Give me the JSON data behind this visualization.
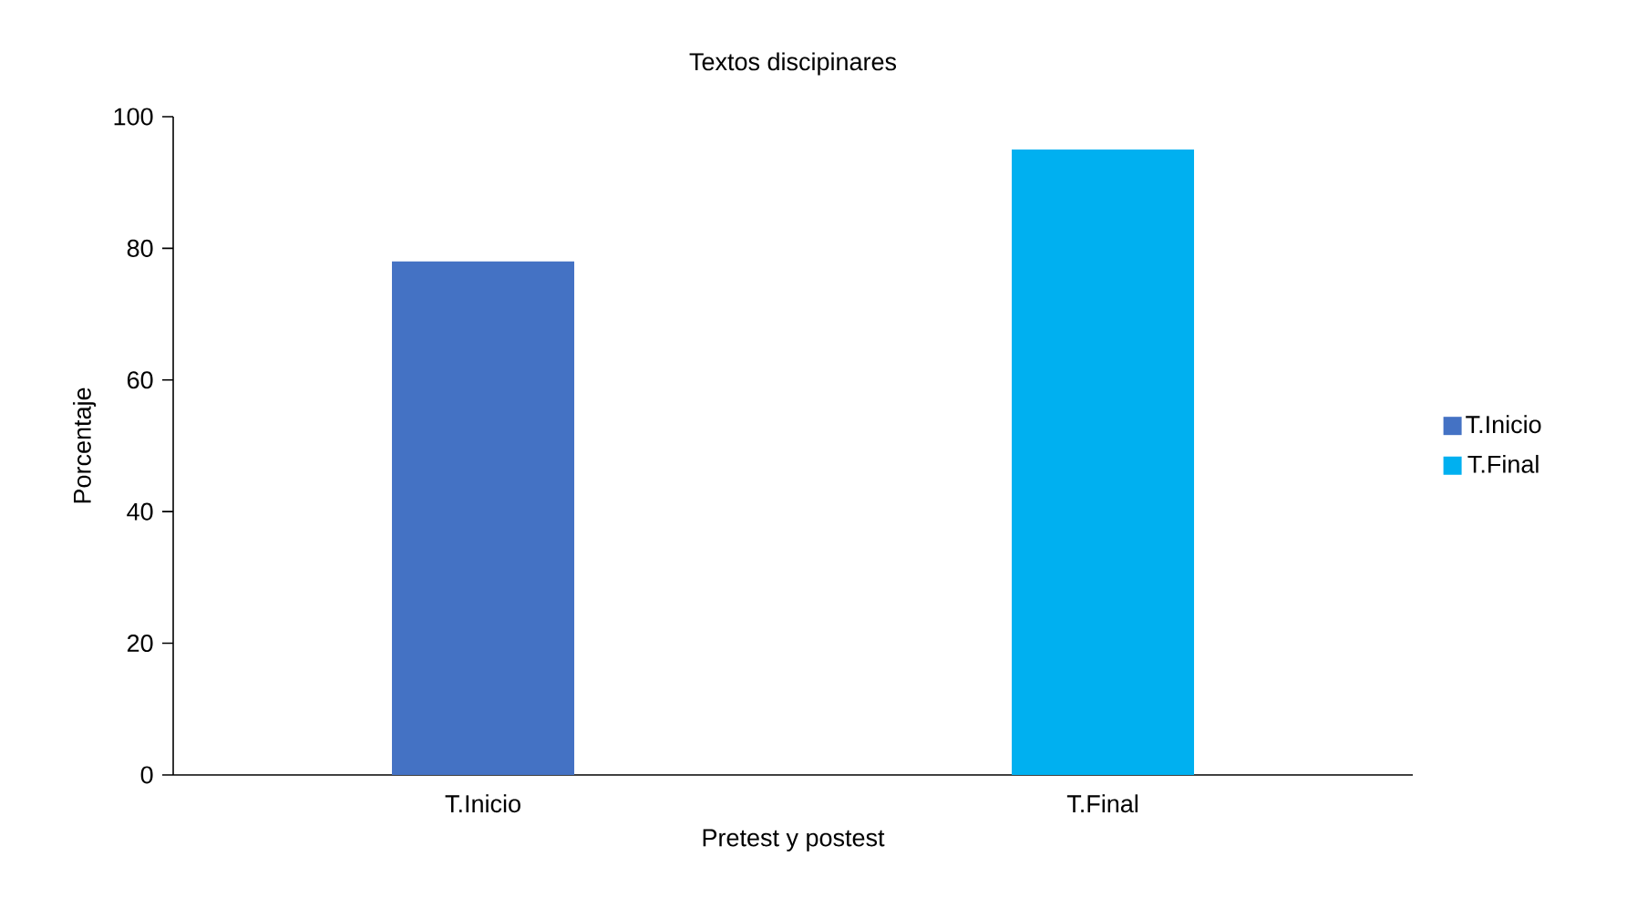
{
  "chart_data": {
    "type": "bar",
    "title": "Textos discipinares",
    "xlabel": "Pretest y postest",
    "ylabel": "Porcentaje",
    "categories": [
      "T.Inicio",
      "T.Final"
    ],
    "series": [
      {
        "name": "T.Inicio",
        "color": "#4472c4",
        "values": [
          78,
          null
        ]
      },
      {
        "name": "T.Final",
        "color": "#00b0f0",
        "values": [
          null,
          95
        ]
      }
    ],
    "ylim": [
      0,
      100
    ],
    "yticks": [
      0,
      20,
      40,
      60,
      80,
      100
    ],
    "grid": false,
    "legend": "right"
  }
}
